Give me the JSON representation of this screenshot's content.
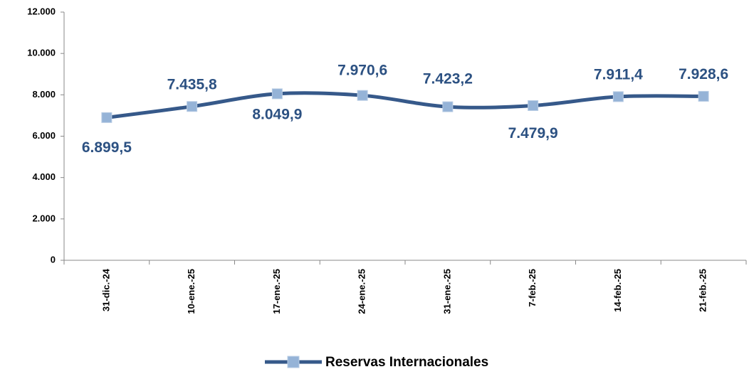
{
  "chart_data": {
    "type": "line",
    "categories": [
      "31-dic.-24",
      "10-ene.-25",
      "17-ene.-25",
      "24-ene.-25",
      "31-ene.-25",
      "7-feb.-25",
      "14-feb.-25",
      "21-feb.-25"
    ],
    "series": [
      {
        "name": "Reservas Internacionales",
        "color": "#36598a",
        "marker_color": "#95b3d7",
        "values": [
          6899.5,
          7435.8,
          8049.9,
          7970.6,
          7423.2,
          7479.9,
          7911.4,
          7928.6
        ],
        "value_labels": [
          "6.899,5",
          "7.435,8",
          "8.049,9",
          "7.970,6",
          "7.423,2",
          "7.479,9",
          "7.911,4",
          "7.928,6"
        ]
      }
    ],
    "ylim": [
      0,
      12000
    ],
    "yticks": [
      0,
      {
        "value": 2000,
        "label": "2.000"
      },
      {
        "value": 4000,
        "label": "4.000"
      },
      {
        "value": 6000,
        "label": "6.000"
      },
      {
        "value": 8000,
        "label": "8.000"
      },
      {
        "value": 10000,
        "label": "10.000"
      },
      {
        "value": 12000,
        "label": "12.000"
      }
    ],
    "grid": false,
    "legend": "bottom",
    "smooth": true
  }
}
